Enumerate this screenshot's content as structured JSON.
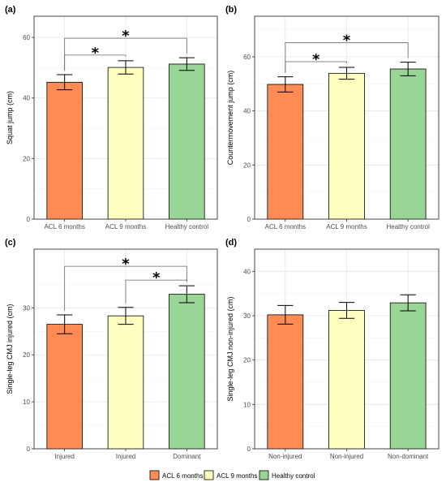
{
  "colors": {
    "acl6": "#FF8C55",
    "acl9": "#FFFFBF",
    "healthy": "#99D594",
    "grid_major": "#e6e6e6",
    "grid_minor": "#f2f2f2",
    "border": "#333333"
  },
  "legend": {
    "items": [
      {
        "label": "ACL 6 months",
        "color": "#FF8C55"
      },
      {
        "label": "ACL 9 months",
        "color": "#FFFFBF"
      },
      {
        "label": "Healthy control",
        "color": "#99D594"
      }
    ]
  },
  "chart_data": [
    {
      "panel": "(a)",
      "type": "bar",
      "ylabel": "Squat jump (cm)",
      "categories": [
        "ACL 6 months",
        "ACL 9 months",
        "Healthy control"
      ],
      "values": [
        45.2,
        50.1,
        51.2
      ],
      "errors": [
        2.5,
        2.2,
        2.1
      ],
      "ylim": [
        0,
        67
      ],
      "yticks": [
        0,
        20,
        40,
        60
      ],
      "grid": true,
      "significance": [
        {
          "from": 0,
          "to": 1,
          "label": "*"
        },
        {
          "from": 0,
          "to": 2,
          "label": "*"
        }
      ]
    },
    {
      "panel": "(b)",
      "type": "bar",
      "ylabel": "Countermovement jump (cm)",
      "categories": [
        "ACL 6 months",
        "ACL 9 months",
        "Healthy control"
      ],
      "values": [
        49.8,
        53.9,
        55.5
      ],
      "errors": [
        2.8,
        2.2,
        2.5
      ],
      "ylim": [
        0,
        75
      ],
      "yticks": [
        0,
        20,
        40,
        60
      ],
      "grid": true,
      "significance": [
        {
          "from": 0,
          "to": 1,
          "label": "*"
        },
        {
          "from": 0,
          "to": 2,
          "label": "*"
        }
      ]
    },
    {
      "panel": "(c)",
      "type": "bar",
      "ylabel": "Single-leg CMJ injured (cm)",
      "categories": [
        "Injured",
        "Injured",
        "Dominant"
      ],
      "values": [
        26.5,
        28.3,
        32.9
      ],
      "errors": [
        2.0,
        1.8,
        1.8
      ],
      "ylim": [
        0,
        42.5
      ],
      "yticks": [
        0,
        10,
        20,
        30
      ],
      "grid": true,
      "significance": [
        {
          "from": 0,
          "to": 2,
          "label": "*"
        },
        {
          "from": 1,
          "to": 2,
          "label": "*"
        }
      ]
    },
    {
      "panel": "(d)",
      "type": "bar",
      "ylabel": "Single-leg CMJ non-injured (cm)",
      "categories": [
        "Non-injured",
        "Non-injured",
        "Non-dominant"
      ],
      "values": [
        30.2,
        31.2,
        32.9
      ],
      "errors": [
        2.1,
        1.8,
        1.8
      ],
      "ylim": [
        0,
        45
      ],
      "yticks": [
        0,
        10,
        20,
        30,
        40
      ],
      "grid": true,
      "significance": []
    }
  ]
}
